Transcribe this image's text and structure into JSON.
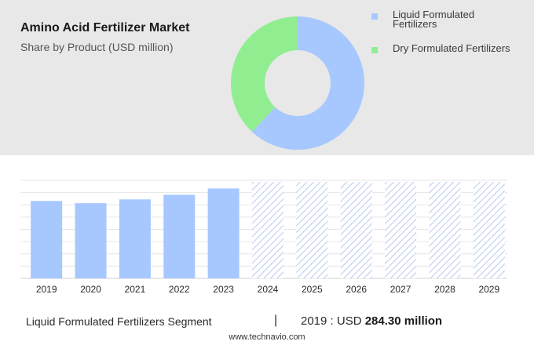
{
  "header": {
    "title": "Amino Acid Fertilizer Market",
    "subtitle": "Share by Product (USD million)"
  },
  "legend": [
    {
      "label": "Liquid Formulated Fertilizers",
      "color": "#a7c7ff"
    },
    {
      "label": "Dry Formulated Fertilizers",
      "color": "#90ee90"
    }
  ],
  "chart_data": [
    {
      "type": "pie",
      "style": "donut",
      "categories": [
        "Liquid Formulated Fertilizers",
        "Dry Formulated Fertilizers"
      ],
      "values": [
        0.62,
        0.38
      ],
      "colors": [
        "#a7c7ff",
        "#90ee90"
      ]
    },
    {
      "type": "bar",
      "categories": [
        "2019",
        "2020",
        "2021",
        "2022",
        "2023",
        "2024",
        "2025",
        "2026",
        "2027",
        "2028",
        "2029"
      ],
      "values": [
        284.3,
        276,
        290,
        307,
        330,
        null,
        null,
        null,
        null,
        null,
        null
      ],
      "forecast_categories": [
        "2024",
        "2025",
        "2026",
        "2027",
        "2028",
        "2029"
      ],
      "forecast_style": "hatched",
      "ylim": [
        0,
        360
      ],
      "grid": true,
      "colors": {
        "actual": "#a7c7ff",
        "forecast_hatch": "#b8c9ef"
      }
    }
  ],
  "footer": {
    "segment": "Liquid Formulated Fertilizers Segment",
    "separator": "|",
    "value_prefix": "2019 : USD",
    "value_bold": "284.30 million",
    "source": "www.technavio.com"
  }
}
